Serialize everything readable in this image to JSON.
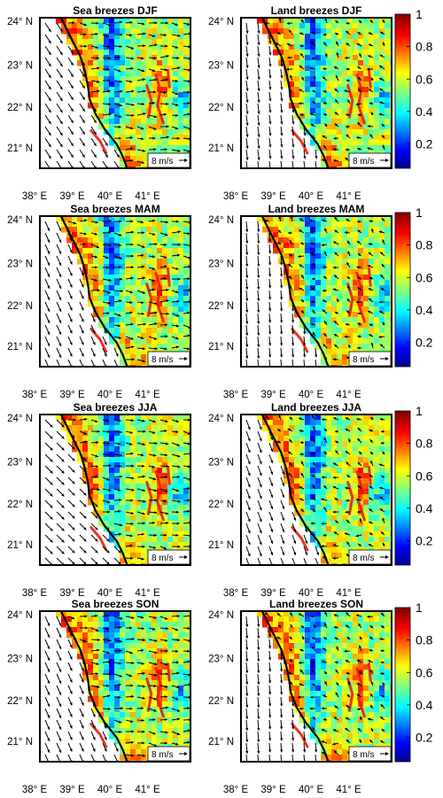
{
  "panels": [
    {
      "title": "Sea breezes DJF",
      "type": "sea"
    },
    {
      "title": "Land breezes DJF",
      "type": "land"
    },
    {
      "title": "Sea breezes MAM",
      "type": "sea"
    },
    {
      "title": "Land breezes MAM",
      "type": "land"
    },
    {
      "title": "Sea breezes JJA",
      "type": "sea"
    },
    {
      "title": "Land breezes JJA",
      "type": "land"
    },
    {
      "title": "Sea breezes SON",
      "type": "sea"
    },
    {
      "title": "Land breezes SON",
      "type": "land"
    }
  ],
  "lat_ticks": [
    "24° N",
    "23° N",
    "22° N",
    "21° N"
  ],
  "lon_ticks": [
    "38° E",
    "39° E",
    "40° E",
    "41° E"
  ],
  "scale_label": "8 m/s",
  "colorbar": {
    "ticks": [
      "1",
      "0.8",
      "0.6",
      "0.4",
      "0.2"
    ],
    "tick_values": [
      1,
      0.8,
      0.6,
      0.4,
      0.2
    ],
    "range": [
      0.05,
      1
    ],
    "colormap": "jet"
  },
  "colors": {
    "coast": "#000000",
    "arrow": "#000000",
    "frame": "#000000"
  }
}
